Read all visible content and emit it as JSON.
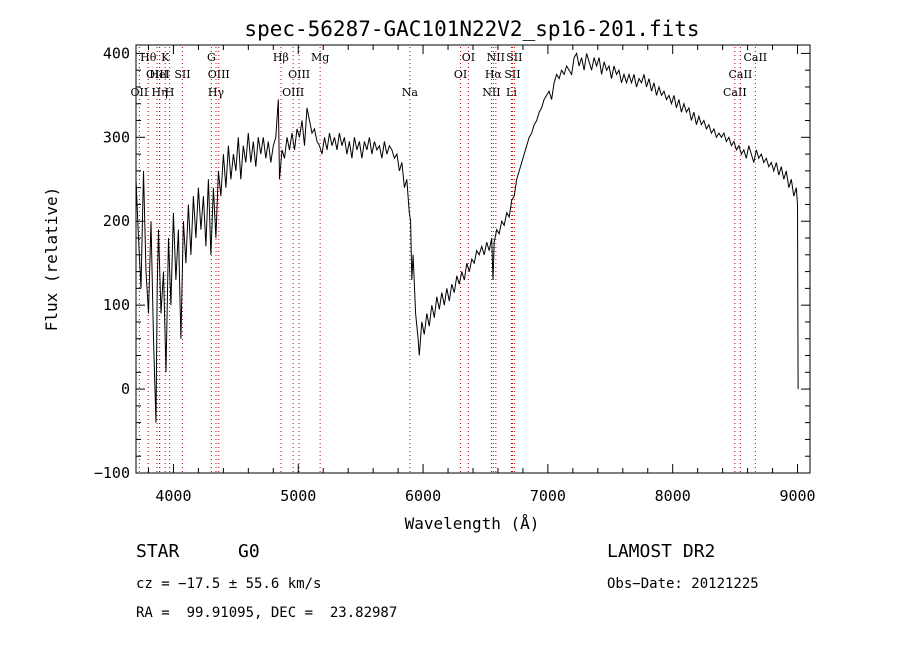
{
  "chart_data": {
    "type": "line",
    "title": "spec-56287-GAC101N22V2_sp16-201.fits",
    "xlabel": "Wavelength (Å)",
    "ylabel": "Flux (relative)",
    "xlim": [
      3700,
      9100
    ],
    "ylim": [
      -100,
      410
    ],
    "xticks": [
      4000,
      5000,
      6000,
      7000,
      8000,
      9000
    ],
    "yticks": [
      -100,
      0,
      100,
      200,
      300,
      400
    ],
    "ytick_labels": [
      "−100",
      "0",
      "100",
      "200",
      "300",
      "400"
    ],
    "grid": false,
    "series_color": "#000000",
    "line_marker_color": "#cc0000",
    "spectrum": [
      [
        3700,
        250
      ],
      [
        3720,
        180
      ],
      [
        3740,
        120
      ],
      [
        3760,
        260
      ],
      [
        3780,
        140
      ],
      [
        3800,
        90
      ],
      [
        3820,
        200
      ],
      [
        3840,
        60
      ],
      [
        3860,
        -40
      ],
      [
        3870,
        120
      ],
      [
        3880,
        190
      ],
      [
        3900,
        90
      ],
      [
        3920,
        140
      ],
      [
        3940,
        20
      ],
      [
        3960,
        180
      ],
      [
        3980,
        100
      ],
      [
        4000,
        210
      ],
      [
        4020,
        130
      ],
      [
        4040,
        190
      ],
      [
        4060,
        60
      ],
      [
        4080,
        200
      ],
      [
        4100,
        150
      ],
      [
        4120,
        220
      ],
      [
        4140,
        160
      ],
      [
        4160,
        230
      ],
      [
        4180,
        180
      ],
      [
        4200,
        240
      ],
      [
        4220,
        190
      ],
      [
        4240,
        230
      ],
      [
        4260,
        170
      ],
      [
        4280,
        250
      ],
      [
        4300,
        160
      ],
      [
        4320,
        240
      ],
      [
        4340,
        180
      ],
      [
        4360,
        260
      ],
      [
        4380,
        230
      ],
      [
        4400,
        280
      ],
      [
        4420,
        240
      ],
      [
        4440,
        290
      ],
      [
        4460,
        250
      ],
      [
        4480,
        280
      ],
      [
        4500,
        260
      ],
      [
        4520,
        300
      ],
      [
        4540,
        250
      ],
      [
        4560,
        290
      ],
      [
        4580,
        270
      ],
      [
        4600,
        305
      ],
      [
        4620,
        270
      ],
      [
        4640,
        295
      ],
      [
        4660,
        265
      ],
      [
        4680,
        300
      ],
      [
        4700,
        280
      ],
      [
        4720,
        300
      ],
      [
        4740,
        275
      ],
      [
        4760,
        295
      ],
      [
        4780,
        270
      ],
      [
        4800,
        290
      ],
      [
        4820,
        300
      ],
      [
        4840,
        345
      ],
      [
        4850,
        250
      ],
      [
        4870,
        285
      ],
      [
        4890,
        275
      ],
      [
        4910,
        300
      ],
      [
        4930,
        285
      ],
      [
        4950,
        305
      ],
      [
        4970,
        285
      ],
      [
        4990,
        310
      ],
      [
        5010,
        300
      ],
      [
        5030,
        320
      ],
      [
        5050,
        290
      ],
      [
        5070,
        335
      ],
      [
        5090,
        320
      ],
      [
        5110,
        305
      ],
      [
        5130,
        310
      ],
      [
        5150,
        295
      ],
      [
        5170,
        290
      ],
      [
        5190,
        280
      ],
      [
        5210,
        300
      ],
      [
        5230,
        285
      ],
      [
        5250,
        305
      ],
      [
        5270,
        290
      ],
      [
        5290,
        300
      ],
      [
        5310,
        285
      ],
      [
        5330,
        305
      ],
      [
        5350,
        290
      ],
      [
        5370,
        300
      ],
      [
        5390,
        280
      ],
      [
        5410,
        295
      ],
      [
        5430,
        275
      ],
      [
        5450,
        300
      ],
      [
        5470,
        285
      ],
      [
        5490,
        295
      ],
      [
        5510,
        275
      ],
      [
        5530,
        295
      ],
      [
        5550,
        285
      ],
      [
        5570,
        300
      ],
      [
        5590,
        280
      ],
      [
        5610,
        295
      ],
      [
        5630,
        285
      ],
      [
        5650,
        290
      ],
      [
        5670,
        275
      ],
      [
        5690,
        295
      ],
      [
        5710,
        280
      ],
      [
        5730,
        290
      ],
      [
        5750,
        285
      ],
      [
        5770,
        275
      ],
      [
        5790,
        280
      ],
      [
        5810,
        260
      ],
      [
        5830,
        270
      ],
      [
        5850,
        240
      ],
      [
        5870,
        250
      ],
      [
        5890,
        210
      ],
      [
        5900,
        200
      ],
      [
        5910,
        130
      ],
      [
        5920,
        160
      ],
      [
        5940,
        90
      ],
      [
        5960,
        60
      ],
      [
        5970,
        40
      ],
      [
        5990,
        80
      ],
      [
        6010,
        65
      ],
      [
        6030,
        90
      ],
      [
        6050,
        75
      ],
      [
        6070,
        100
      ],
      [
        6090,
        85
      ],
      [
        6110,
        110
      ],
      [
        6130,
        95
      ],
      [
        6150,
        115
      ],
      [
        6170,
        100
      ],
      [
        6190,
        120
      ],
      [
        6210,
        105
      ],
      [
        6230,
        125
      ],
      [
        6250,
        115
      ],
      [
        6270,
        135
      ],
      [
        6290,
        125
      ],
      [
        6310,
        140
      ],
      [
        6330,
        130
      ],
      [
        6350,
        150
      ],
      [
        6370,
        140
      ],
      [
        6390,
        155
      ],
      [
        6410,
        150
      ],
      [
        6430,
        165
      ],
      [
        6450,
        160
      ],
      [
        6470,
        170
      ],
      [
        6490,
        160
      ],
      [
        6510,
        175
      ],
      [
        6530,
        165
      ],
      [
        6550,
        180
      ],
      [
        6560,
        130
      ],
      [
        6570,
        175
      ],
      [
        6590,
        190
      ],
      [
        6610,
        185
      ],
      [
        6630,
        200
      ],
      [
        6650,
        195
      ],
      [
        6670,
        210
      ],
      [
        6690,
        205
      ],
      [
        6710,
        225
      ],
      [
        6730,
        230
      ],
      [
        6750,
        250
      ],
      [
        6770,
        260
      ],
      [
        6790,
        270
      ],
      [
        6810,
        280
      ],
      [
        6830,
        290
      ],
      [
        6850,
        300
      ],
      [
        6870,
        305
      ],
      [
        6890,
        315
      ],
      [
        6910,
        320
      ],
      [
        6930,
        330
      ],
      [
        6950,
        335
      ],
      [
        6970,
        345
      ],
      [
        6990,
        350
      ],
      [
        7010,
        355
      ],
      [
        7030,
        345
      ],
      [
        7050,
        365
      ],
      [
        7070,
        375
      ],
      [
        7090,
        370
      ],
      [
        7110,
        380
      ],
      [
        7130,
        375
      ],
      [
        7150,
        385
      ],
      [
        7170,
        380
      ],
      [
        7190,
        375
      ],
      [
        7210,
        395
      ],
      [
        7230,
        400
      ],
      [
        7250,
        385
      ],
      [
        7270,
        395
      ],
      [
        7290,
        380
      ],
      [
        7310,
        400
      ],
      [
        7330,
        390
      ],
      [
        7350,
        380
      ],
      [
        7370,
        395
      ],
      [
        7390,
        385
      ],
      [
        7410,
        395
      ],
      [
        7430,
        375
      ],
      [
        7450,
        390
      ],
      [
        7470,
        380
      ],
      [
        7490,
        385
      ],
      [
        7510,
        370
      ],
      [
        7530,
        385
      ],
      [
        7550,
        375
      ],
      [
        7570,
        380
      ],
      [
        7590,
        365
      ],
      [
        7610,
        375
      ],
      [
        7630,
        365
      ],
      [
        7650,
        375
      ],
      [
        7670,
        365
      ],
      [
        7690,
        375
      ],
      [
        7710,
        360
      ],
      [
        7730,
        370
      ],
      [
        7750,
        365
      ],
      [
        7770,
        375
      ],
      [
        7790,
        360
      ],
      [
        7810,
        370
      ],
      [
        7830,
        355
      ],
      [
        7850,
        365
      ],
      [
        7870,
        350
      ],
      [
        7890,
        360
      ],
      [
        7910,
        350
      ],
      [
        7930,
        355
      ],
      [
        7950,
        345
      ],
      [
        7970,
        350
      ],
      [
        7990,
        340
      ],
      [
        8010,
        350
      ],
      [
        8030,
        335
      ],
      [
        8050,
        345
      ],
      [
        8070,
        330
      ],
      [
        8090,
        340
      ],
      [
        8110,
        330
      ],
      [
        8130,
        335
      ],
      [
        8150,
        320
      ],
      [
        8170,
        330
      ],
      [
        8190,
        315
      ],
      [
        8210,
        325
      ],
      [
        8230,
        315
      ],
      [
        8250,
        320
      ],
      [
        8270,
        310
      ],
      [
        8290,
        315
      ],
      [
        8310,
        305
      ],
      [
        8330,
        310
      ],
      [
        8350,
        300
      ],
      [
        8370,
        305
      ],
      [
        8390,
        300
      ],
      [
        8410,
        305
      ],
      [
        8430,
        295
      ],
      [
        8450,
        300
      ],
      [
        8470,
        290
      ],
      [
        8490,
        295
      ],
      [
        8510,
        285
      ],
      [
        8530,
        290
      ],
      [
        8550,
        280
      ],
      [
        8570,
        285
      ],
      [
        8590,
        275
      ],
      [
        8610,
        290
      ],
      [
        8630,
        280
      ],
      [
        8650,
        270
      ],
      [
        8670,
        285
      ],
      [
        8690,
        275
      ],
      [
        8710,
        280
      ],
      [
        8730,
        270
      ],
      [
        8750,
        275
      ],
      [
        8770,
        265
      ],
      [
        8790,
        270
      ],
      [
        8810,
        260
      ],
      [
        8830,
        270
      ],
      [
        8850,
        255
      ],
      [
        8870,
        265
      ],
      [
        8890,
        250
      ],
      [
        8910,
        260
      ],
      [
        8930,
        240
      ],
      [
        8950,
        250
      ],
      [
        8970,
        230
      ],
      [
        8990,
        240
      ],
      [
        9000,
        220
      ],
      [
        9005,
        0
      ]
    ],
    "line_markers": [
      {
        "label": "OII",
        "wavelength": 3727,
        "row": 2
      },
      {
        "label": "Hθ",
        "wavelength": 3798,
        "row": 0
      },
      {
        "label": "OIII",
        "wavelength": 3869,
        "row": 1
      },
      {
        "label": "Hη",
        "wavelength": 3889,
        "row": 2
      },
      {
        "label": "HeI",
        "wavelength": 3889,
        "row": 1
      },
      {
        "label": "K",
        "wavelength": 3934,
        "row": 0
      },
      {
        "label": "H",
        "wavelength": 3969,
        "row": 2
      },
      {
        "label": "SII",
        "wavelength": 4072,
        "row": 1
      },
      {
        "label": "G",
        "wavelength": 4304,
        "row": 0
      },
      {
        "label": "Hγ",
        "wavelength": 4341,
        "row": 2
      },
      {
        "label": "OIII",
        "wavelength": 4363,
        "row": 1
      },
      {
        "label": "Hβ",
        "wavelength": 4861,
        "row": 0
      },
      {
        "label": "OIII",
        "wavelength": 4959,
        "row": 2
      },
      {
        "label": "OIII",
        "wavelength": 5007,
        "row": 1
      },
      {
        "label": "Mg",
        "wavelength": 5175,
        "row": 0
      },
      {
        "label": "Na",
        "wavelength": 5894,
        "row": 2
      },
      {
        "label": "OI",
        "wavelength": 6300,
        "row": 1
      },
      {
        "label": "OI",
        "wavelength": 6363,
        "row": 0
      },
      {
        "label": "NII",
        "wavelength": 6548,
        "row": 2
      },
      {
        "label": "Hα",
        "wavelength": 6563,
        "row": 1
      },
      {
        "label": "NII",
        "wavelength": 6583,
        "row": 0
      },
      {
        "label": "Li",
        "wavelength": 6708,
        "row": 2
      },
      {
        "label": "SII",
        "wavelength": 6716,
        "row": 1
      },
      {
        "label": "SII",
        "wavelength": 6731,
        "row": 0
      },
      {
        "label": "CaII",
        "wavelength": 8498,
        "row": 2
      },
      {
        "label": "CaII",
        "wavelength": 8542,
        "row": 1
      },
      {
        "label": "CaII",
        "wavelength": 8662,
        "row": 0
      }
    ]
  },
  "info": {
    "class_label": "STAR",
    "subclass": "G0",
    "survey": "LAMOST DR2",
    "cz_line": "cz = −17.5 ± 55.6 km/s",
    "obs_date_line": "Obs−Date: 20121225",
    "radec_line": "RA =  99.91095, DEC =  23.82987"
  }
}
